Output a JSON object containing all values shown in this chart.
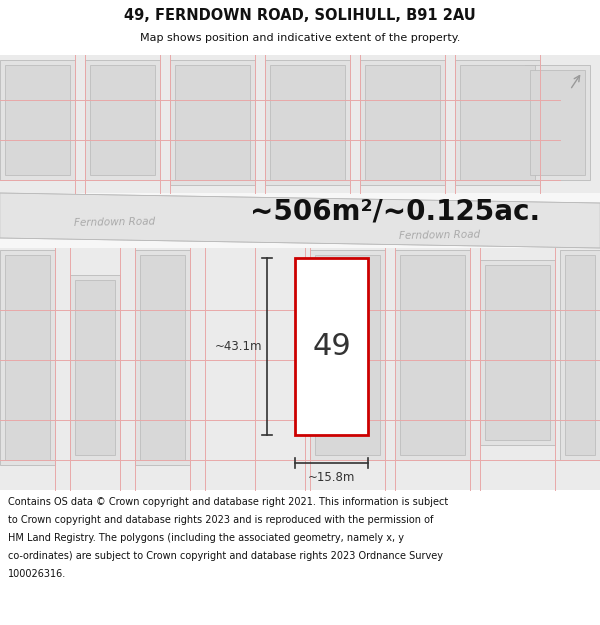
{
  "title_line1": "49, FERNDOWN ROAD, SOLIHULL, B91 2AU",
  "title_line2": "Map shows position and indicative extent of the property.",
  "area_text": "~506m²/~0.125ac.",
  "label_49": "49",
  "dim_height": "~43.1m",
  "dim_width": "~15.8m",
  "road_label_left": "Ferndown Road",
  "road_label_right": "Ferndown Road",
  "footer_line1": "Contains OS data © Crown copyright and database right 2021. This information is subject",
  "footer_line2": "to Crown copyright and database rights 2023 and is reproduced with the permission of",
  "footer_line3": "HM Land Registry. The polygons (including the associated geometry, namely x, y",
  "footer_line4": "co-ordinates) are subject to Crown copyright and database rights 2023 Ordnance Survey",
  "footer_line5": "100026316.",
  "map_bg": "#f7f7f7",
  "road_fill": "#e4e4e4",
  "road_edge": "#c8c8c8",
  "building_fill": "#e2e2e2",
  "building_inner_fill": "#d8d8d8",
  "building_edge": "#c0c0c0",
  "building_inner_edge": "#b8b8b8",
  "highlight_fill": "#ffffff",
  "highlight_edge": "#cc0000",
  "grid_color": "#e8a8a8",
  "dim_color": "#333333",
  "road_text_color": "#aaaaaa",
  "title_color": "#111111",
  "footer_color": "#111111",
  "arrow_color": "#999999"
}
